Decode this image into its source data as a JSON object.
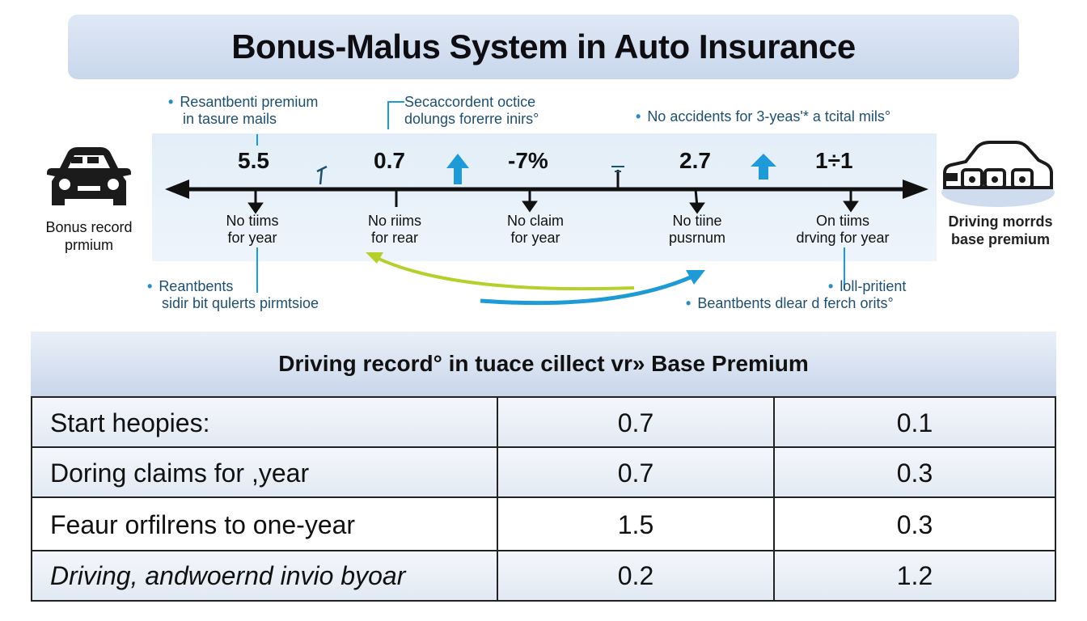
{
  "title": "Bonus-Malus System in Auto Insurance",
  "notes": {
    "top_left": {
      "line1": "Resantbenti premium",
      "line2": "in tasure mails"
    },
    "top_center": {
      "line1": "Secaccordent octice",
      "line2": "dolungs forerre inirs°"
    },
    "top_right": {
      "line1": "No accidents for 3-yeas'* a tcital mils°"
    },
    "bottom_left": {
      "line1": "Reantbents",
      "line2": "sidir bit qulerts pirmtsioe"
    },
    "bottom_right": {
      "line1": "loll-pritient",
      "line2": "Beantbents dlear d ferch orits°"
    }
  },
  "timeline": {
    "values": [
      "5.5",
      "0.7",
      "-7%",
      "2.7",
      "1÷1"
    ],
    "ticks": [
      {
        "line1": "No tiims",
        "line2": "for year"
      },
      {
        "line1": "No riims",
        "line2": "for rear"
      },
      {
        "line1": "No claim",
        "line2": "for year"
      },
      {
        "line1": "No tiine",
        "line2": "pusrnum"
      },
      {
        "line1": "On tiims",
        "line2": "drving for year"
      }
    ]
  },
  "left_car": {
    "line1": "Bonus record",
    "line2": "prmium"
  },
  "right_car": {
    "line1": "Driving morrds",
    "line2": "base premium"
  },
  "colors": {
    "accent_blue": "#1e9ad6",
    "accent_green": "#b7cf2a",
    "banner": "#cfdcee"
  },
  "table": {
    "title": "Driving record° in tuace cillect vr» Base Premium",
    "rows": [
      {
        "label": "Start heopies:",
        "v1": "0.7",
        "v2": "0.1"
      },
      {
        "label": "Doring claims for ,year",
        "v1": "0.7",
        "v2": "0.3"
      },
      {
        "label": "Feaur orfilrens to one-year",
        "v1": "1.5",
        "v2": "0.3"
      },
      {
        "label": "Driving, andwoernd invio byoar",
        "v1": "0.2",
        "v2": "1.2"
      }
    ]
  }
}
